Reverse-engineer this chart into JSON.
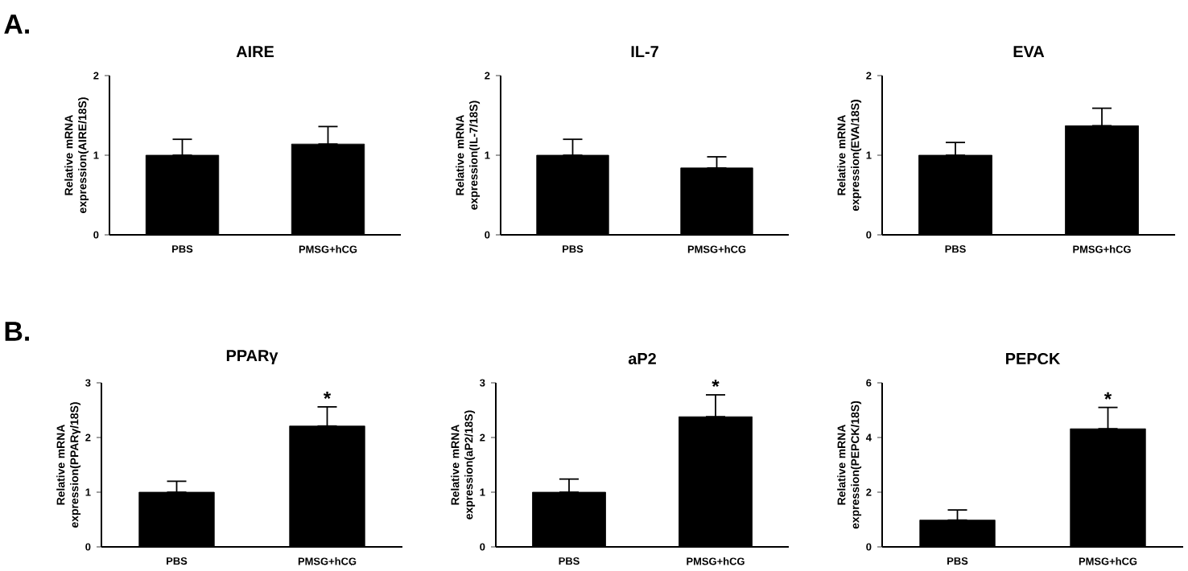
{
  "chart_data": [
    {
      "type": "bar",
      "title": "AIRE",
      "ylabel": "Relative mRNA expression(AIRE/18S)",
      "categories": [
        "PBS",
        "PMSG+hCG"
      ],
      "values": [
        1.0,
        1.14
      ],
      "errors": [
        [
          1.0,
          1.2
        ],
        [
          1.14,
          1.36
        ]
      ],
      "color": "#000000",
      "ylim": [
        0,
        2
      ],
      "yticks": [
        0,
        1,
        2
      ],
      "annotations": [
        "A."
      ]
    },
    {
      "type": "bar",
      "title": "IL-7",
      "ylabel": "Relative mRNA expression(IL-7/18S)",
      "categories": [
        "PBS",
        "PMSG+hCG"
      ],
      "values": [
        1.0,
        0.84
      ],
      "errors": [
        [
          1.0,
          1.2
        ],
        [
          0.84,
          0.98
        ]
      ],
      "color": "#000000",
      "ylim": [
        0,
        2
      ],
      "yticks": [
        0,
        1,
        2
      ]
    },
    {
      "type": "bar",
      "title": "EVA",
      "ylabel": "Relative mRNA expression(EVA/18S)",
      "categories": [
        "PBS",
        "PMSG+hCG"
      ],
      "values": [
        1.0,
        1.37
      ],
      "errors": [
        [
          1.0,
          1.16
        ],
        [
          1.37,
          1.59
        ]
      ],
      "color": "#000000",
      "ylim": [
        0,
        2
      ],
      "yticks": [
        0,
        1,
        2
      ]
    },
    {
      "type": "bar",
      "title": "PPARγ",
      "ylabel": "Relative mRNA expression(PPARγ/18S)",
      "categories": [
        "PBS",
        "PMSG+hCG"
      ],
      "values": [
        1.0,
        2.21
      ],
      "errors": [
        [
          1.0,
          1.2
        ],
        [
          2.21,
          2.56
        ]
      ],
      "color": "#000000",
      "ylim": [
        0,
        3
      ],
      "yticks": [
        0,
        1,
        2,
        3
      ],
      "annotations": [
        "B.",
        {
          "text": "*",
          "x": "PMSG+hCG",
          "y": 2.56
        }
      ]
    },
    {
      "type": "bar",
      "title": "aP2",
      "ylabel": "Relative mRNA expression(aP2/18S)",
      "categories": [
        "PBS",
        "PMSG+hCG"
      ],
      "values": [
        1.0,
        2.38
      ],
      "errors": [
        [
          1.0,
          1.24
        ],
        [
          2.38,
          2.78
        ]
      ],
      "color": "#000000",
      "ylim": [
        0,
        3
      ],
      "yticks": [
        0,
        1,
        2,
        3
      ],
      "annotations": [
        {
          "text": "*",
          "x": "PMSG+hCG",
          "y": 2.78
        }
      ]
    },
    {
      "type": "bar",
      "title": "PEPCK",
      "ylabel": "Relative mRNA expression(PEPCK/18S)",
      "categories": [
        "PBS",
        "PMSG+hCG"
      ],
      "values": [
        0.98,
        4.32
      ],
      "errors": [
        [
          0.98,
          1.35
        ],
        [
          4.32,
          5.1
        ]
      ],
      "color": "#000000",
      "ylim": [
        0,
        6
      ],
      "yticks": [
        0,
        2,
        4,
        6
      ],
      "annotations": [
        {
          "text": "*",
          "x": "PMSG+hCG",
          "y": 5.1
        }
      ]
    }
  ]
}
